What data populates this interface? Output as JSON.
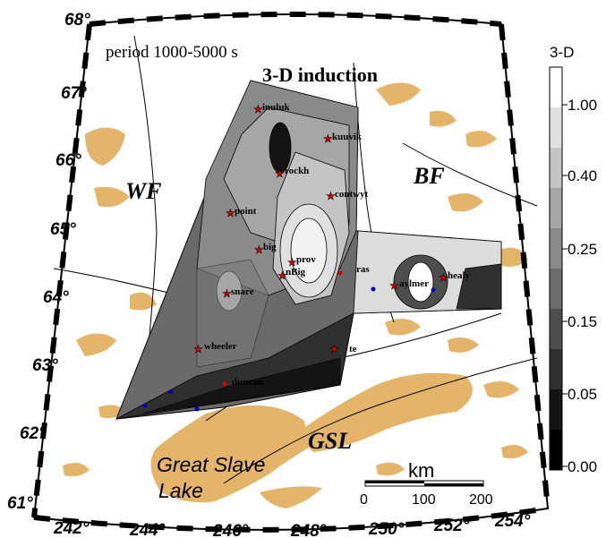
{
  "map": {
    "period": "period 1000-5000 s",
    "title": "3-D induction",
    "regions": [
      "WF",
      "BF",
      "GSL"
    ],
    "lake": [
      "Great Slave",
      "Lake"
    ]
  },
  "lat_labels": [
    "68°",
    "67°",
    "66°",
    "65°",
    "64°",
    "63°",
    "62°",
    "61°"
  ],
  "lon_labels": [
    "242°",
    "244°",
    "246°",
    "248°",
    "250°",
    "252°",
    "254°"
  ],
  "stations": [
    {
      "name": "inuluk",
      "shown": true
    },
    {
      "name": "kuuvik",
      "shown": true
    },
    {
      "name": "rockh",
      "shown": true
    },
    {
      "name": "contwyt",
      "shown": true
    },
    {
      "name": "point",
      "shown": true
    },
    {
      "name": "big",
      "shown": true
    },
    {
      "name": "prov",
      "shown": true
    },
    {
      "name": "nBig",
      "shown": true
    },
    {
      "name": "snare",
      "shown": true
    },
    {
      "name": "ras",
      "shown": true
    },
    {
      "name": "aylmer",
      "shown": true
    },
    {
      "name": "healy",
      "shown": true
    },
    {
      "name": "wheeler",
      "shown": true
    },
    {
      "name": "te",
      "shown": true
    },
    {
      "name": "duncan",
      "shown": true
    }
  ],
  "scale_bar": {
    "unit": "km",
    "ticks": [
      "0",
      "100",
      "200"
    ]
  },
  "colorbar": {
    "title": "3-D",
    "labels": [
      "1.00",
      "0.40",
      "0.25",
      "0.15",
      "0.05",
      "0.00"
    ],
    "shades": [
      "#ffffff",
      "#e0e0e0",
      "#c4c4c4",
      "#a6a6a6",
      "#8a8a8a",
      "#6c6c6c",
      "#4e4e4e",
      "#303030",
      "#141414",
      "#000000"
    ]
  },
  "colors": {
    "land_water": "#e3b46a",
    "station_star": "#d40000",
    "site_dot": "#0000c8"
  }
}
